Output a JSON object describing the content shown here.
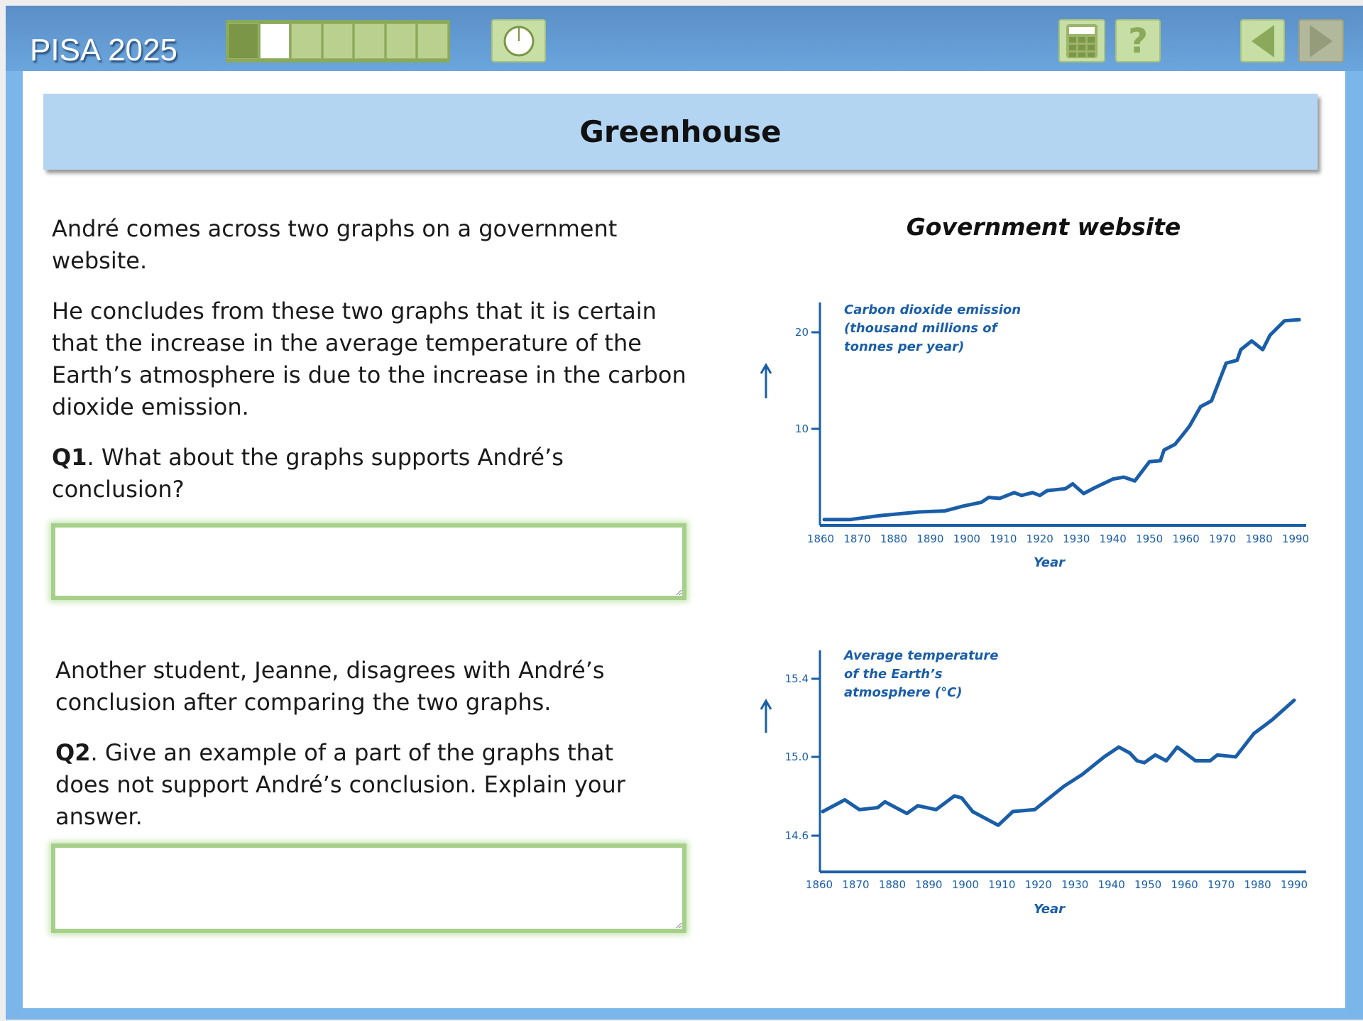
{
  "header": {
    "logo": "PISA 2025",
    "progress": {
      "total": 7,
      "completed": 1,
      "current": 2
    },
    "icons": [
      "timer-icon",
      "calculator-icon",
      "help-icon",
      "back-arrow-icon",
      "forward-arrow-icon"
    ]
  },
  "title": "Greenhouse",
  "left": {
    "intro": "André comes across two graphs on a government website.",
    "conclusion": "He concludes from these two graphs that it is certain that the increase in the average temperature of the Earth’s atmosphere is due to the increase in the carbon dioxide emission.",
    "q1_label": "Q1",
    "q1_text": ". What about the graphs supports André’s conclusion?",
    "answer1": "",
    "jeanne": "Another student, Jeanne, disagrees with André’s conclusion after comparing the two graphs.",
    "q2_label": "Q2",
    "q2_text": ". Give an example of a part of the graphs that does not support André’s conclusion. Explain your answer.",
    "answer2": ""
  },
  "right": {
    "heading": "Government website"
  },
  "colors": {
    "line": "#1a5ea8",
    "answer_border": "#a6d08a",
    "title_bar": "#b3d5f2",
    "header": "#5b8ec6"
  },
  "chart_data": [
    {
      "type": "line",
      "title_lines": [
        "Carbon dioxide emission",
        "(thousand millions of",
        "tonnes per year)"
      ],
      "xlabel": "Year",
      "xlim": [
        1860,
        1990
      ],
      "ylim": [
        0,
        23
      ],
      "xticks": [
        "1860",
        "1870",
        "1880",
        "1890",
        "1900",
        "1910",
        "1920",
        "1930",
        "1940",
        "1950",
        "1960",
        "1970",
        "1980",
        "1990"
      ],
      "yticks": [
        "10",
        "20"
      ],
      "x": [
        1861,
        1868,
        1876,
        1887,
        1894,
        1899,
        1904,
        1906,
        1909,
        1913,
        1915,
        1918,
        1920,
        1922,
        1927,
        1929,
        1932,
        1935,
        1940,
        1943,
        1946,
        1948,
        1950,
        1953,
        1954,
        1957,
        1960,
        1961,
        1964,
        1967,
        1971,
        1974,
        1975,
        1978,
        1981,
        1983,
        1987,
        1991
      ],
      "y": [
        0.6,
        0.6,
        1.0,
        1.4,
        1.5,
        2.0,
        2.4,
        2.9,
        2.8,
        3.4,
        3.1,
        3.4,
        3.1,
        3.6,
        3.8,
        4.3,
        3.3,
        3.9,
        4.8,
        5.0,
        4.6,
        5.6,
        6.6,
        6.7,
        7.8,
        8.4,
        9.8,
        10.3,
        12.3,
        12.9,
        16.8,
        17.1,
        18.2,
        19.1,
        18.2,
        19.7,
        21.2,
        21.3
      ]
    },
    {
      "type": "line",
      "title_lines": [
        "Average temperature",
        "of the Earth’s",
        "atmosphere (°C)"
      ],
      "xlabel": "Year",
      "xlim": [
        1860,
        1990
      ],
      "ylim": [
        14.4,
        15.5
      ],
      "xticks": [
        "1860",
        "1870",
        "1880",
        "1890",
        "1900",
        "1910",
        "1920",
        "1930",
        "1940",
        "1950",
        "1960",
        "1970",
        "1980",
        "1990"
      ],
      "yticks": [
        "14.6",
        "15.0",
        "15.4"
      ],
      "x": [
        1861,
        1867,
        1871,
        1876,
        1878,
        1884,
        1887,
        1892,
        1897,
        1899,
        1902,
        1909,
        1913,
        1919,
        1927,
        1932,
        1938,
        1942,
        1945,
        1947,
        1949,
        1952,
        1955,
        1958,
        1963,
        1967,
        1969,
        1974,
        1979,
        1984,
        1990
      ],
      "y": [
        14.72,
        14.78,
        14.73,
        14.74,
        14.77,
        14.71,
        14.75,
        14.73,
        14.8,
        14.79,
        14.72,
        14.65,
        14.72,
        14.73,
        14.85,
        14.91,
        15.0,
        15.05,
        15.02,
        14.98,
        14.97,
        15.01,
        14.98,
        15.05,
        14.98,
        14.98,
        15.01,
        15.0,
        15.12,
        15.19,
        15.29
      ]
    }
  ]
}
